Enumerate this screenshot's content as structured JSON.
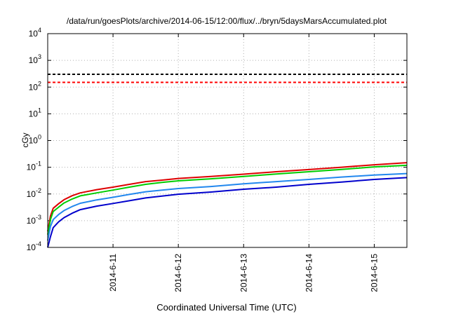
{
  "chart_data": {
    "type": "line",
    "title": "/data/run/goesPlots/archive/2014-06-15/12:00/flux/../bryn/5daysMarsAccumulated.plot",
    "xlabel": "Coordinated Universal Time (UTC)",
    "ylabel": "cGy",
    "x_scale": "time",
    "y_scale": "log",
    "xlim": [
      "2014-06-10T00:00",
      "2014-06-15T12:00"
    ],
    "ylim": [
      0.0001,
      10000
    ],
    "x_ticks": [
      {
        "at": "2014-06-11T00:00",
        "label": "2014-6-11"
      },
      {
        "at": "2014-06-12T00:00",
        "label": "2014-6-12"
      },
      {
        "at": "2014-06-13T00:00",
        "label": "2014-6-13"
      },
      {
        "at": "2014-06-14T00:00",
        "label": "2014-6-14"
      },
      {
        "at": "2014-06-15T00:00",
        "label": "2014-6-15"
      }
    ],
    "y_ticks": [
      {
        "value": 0.0001,
        "base": "10",
        "exp": "-4"
      },
      {
        "value": 0.001,
        "base": "10",
        "exp": "-3"
      },
      {
        "value": 0.01,
        "base": "10",
        "exp": "-2"
      },
      {
        "value": 0.1,
        "base": "10",
        "exp": "-1"
      },
      {
        "value": 1,
        "base": "10",
        "exp": "0"
      },
      {
        "value": 10,
        "base": "10",
        "exp": "1"
      },
      {
        "value": 100,
        "base": "10",
        "exp": "2"
      },
      {
        "value": 1000,
        "base": "10",
        "exp": "3"
      },
      {
        "value": 10000,
        "base": "10",
        "exp": "4"
      }
    ],
    "grid": true,
    "reference_lines": [
      {
        "value": 300,
        "color": "#000000",
        "style": "dashed"
      },
      {
        "value": 150,
        "color": "#ff0000",
        "style": "dashed"
      }
    ],
    "x": [
      "2014-06-10T00:00",
      "2014-06-10T01:00",
      "2014-06-10T02:00",
      "2014-06-10T04:00",
      "2014-06-10T06:00",
      "2014-06-10T09:00",
      "2014-06-10T12:00",
      "2014-06-10T18:00",
      "2014-06-11T00:00",
      "2014-06-11T06:00",
      "2014-06-11T12:00",
      "2014-06-11T18:00",
      "2014-06-12T00:00",
      "2014-06-12T12:00",
      "2014-06-13T00:00",
      "2014-06-13T12:00",
      "2014-06-14T00:00",
      "2014-06-14T12:00",
      "2014-06-15T00:00",
      "2014-06-15T12:00"
    ],
    "series": [
      {
        "color": "#dd0000",
        "values": [
          0.0004,
          0.0015,
          0.0029,
          0.0043,
          0.0061,
          0.0086,
          0.011,
          0.0145,
          0.018,
          0.023,
          0.029,
          0.033,
          0.038,
          0.045,
          0.055,
          0.068,
          0.082,
          0.1,
          0.124,
          0.148
        ]
      },
      {
        "color": "#00cc00",
        "values": [
          0.0003,
          0.0011,
          0.0022,
          0.0032,
          0.0046,
          0.0065,
          0.0085,
          0.011,
          0.014,
          0.018,
          0.023,
          0.027,
          0.031,
          0.037,
          0.045,
          0.056,
          0.068,
          0.083,
          0.103,
          0.118
        ]
      },
      {
        "color": "#2288ee",
        "values": [
          0.00018,
          0.0006,
          0.0011,
          0.0017,
          0.0024,
          0.0034,
          0.0045,
          0.006,
          0.0075,
          0.0096,
          0.0121,
          0.014,
          0.016,
          0.019,
          0.024,
          0.029,
          0.035,
          0.043,
          0.051,
          0.058
        ]
      },
      {
        "color": "#0000cc",
        "values": [
          0.0001,
          0.00025,
          0.00055,
          0.0009,
          0.0013,
          0.0019,
          0.0026,
          0.0035,
          0.0044,
          0.0056,
          0.0071,
          0.0083,
          0.0098,
          0.0118,
          0.015,
          0.018,
          0.023,
          0.028,
          0.035,
          0.041
        ]
      }
    ]
  }
}
